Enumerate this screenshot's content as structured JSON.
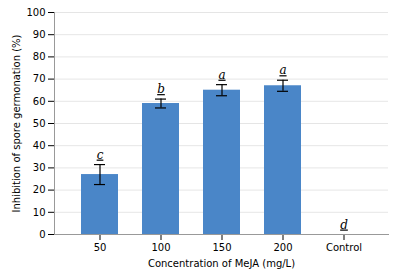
{
  "chart_data": {
    "type": "bar",
    "categories": [
      "50",
      "100",
      "150",
      "200",
      "Control"
    ],
    "values": [
      27.0,
      59.0,
      65.0,
      67.0,
      0.0
    ],
    "errors": [
      4.5,
      2.0,
      2.5,
      2.5,
      0.0
    ],
    "annotations": [
      "c",
      "b",
      "a",
      "a",
      "d"
    ],
    "color": "#4a86c8",
    "xlabel": "Concentration of MeJA (mg/L)",
    "ylabel": "Inhibition of spore germonation (%)",
    "ylim": [
      0,
      100
    ],
    "yticks": [
      0,
      10,
      20,
      30,
      40,
      50,
      60,
      70,
      80,
      90,
      100
    ],
    "grid": true
  }
}
